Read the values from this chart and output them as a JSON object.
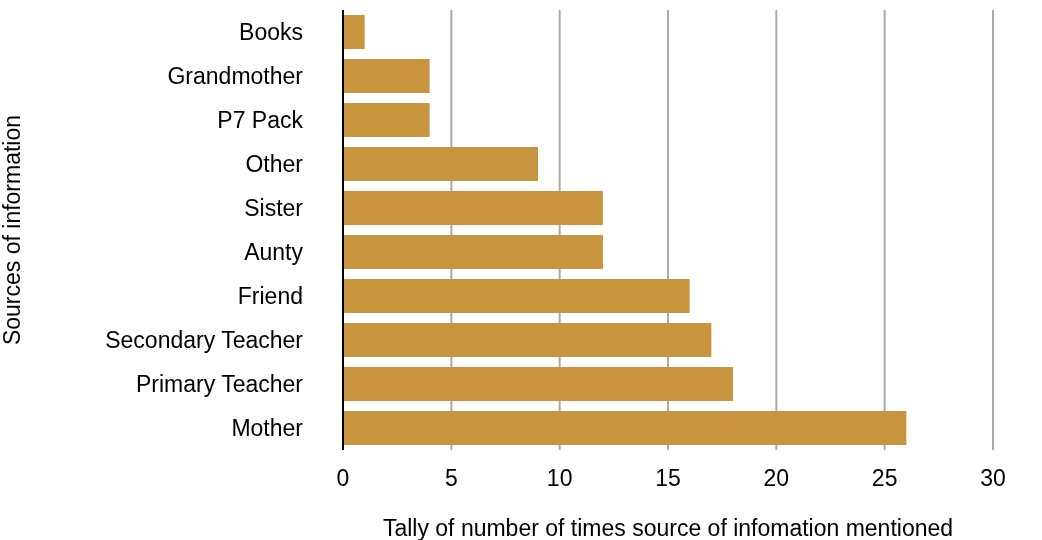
{
  "chart_data": {
    "type": "bar",
    "orientation": "horizontal",
    "xlabel": "Tally of number of times source of infomation mentioned",
    "ylabel": "Sources of information",
    "categories": [
      "Books",
      "Grandmother",
      "P7 Pack",
      "Other",
      "Sister",
      "Aunty",
      "Friend",
      "Secondary Teacher",
      "Primary Teacher",
      "Mother"
    ],
    "values": [
      1,
      4,
      4,
      9,
      12,
      12,
      16,
      17,
      18,
      26
    ],
    "color": "#c8943e",
    "xlim": [
      0,
      30
    ],
    "xticks": [
      0,
      5,
      10,
      15,
      20,
      25,
      30
    ],
    "grid": "x",
    "legend": false
  }
}
